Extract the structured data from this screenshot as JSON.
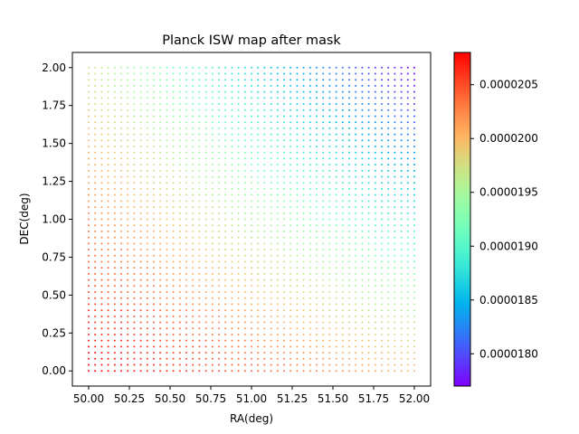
{
  "chart_data": {
    "type": "scatter",
    "title": "Planck ISW map after mask",
    "xlabel": "RA(deg)",
    "ylabel": "DEC(deg)",
    "xlim": [
      49.9,
      52.1
    ],
    "ylim": [
      -0.1,
      2.1
    ],
    "grid": false,
    "x_ticks": [
      50.0,
      50.25,
      50.5,
      50.75,
      51.0,
      51.25,
      51.5,
      51.75,
      52.0
    ],
    "x_tick_labels": [
      "50.00",
      "50.25",
      "50.50",
      "50.75",
      "51.00",
      "51.25",
      "51.50",
      "51.75",
      "52.00"
    ],
    "y_ticks": [
      0.0,
      0.25,
      0.5,
      0.75,
      1.0,
      1.25,
      1.5,
      1.75,
      2.0
    ],
    "y_tick_labels": [
      "0.00",
      "0.25",
      "0.50",
      "0.75",
      "1.00",
      "1.25",
      "1.50",
      "1.75",
      "2.00"
    ],
    "points": {
      "x_range": [
        50.0,
        52.0
      ],
      "y_range": [
        0.0,
        2.0
      ],
      "grid_step": 0.04,
      "value_field": {
        "bottom_left": 2.08e-05,
        "bottom_right": 2e-05,
        "top_left": 1.97e-05,
        "top_right": 1.77e-05
      }
    },
    "colorbar": {
      "colormap": "rainbow",
      "vmin": 1.77e-05,
      "vmax": 2.08e-05,
      "ticks": [
        1.8e-05,
        1.85e-05,
        1.9e-05,
        1.95e-05,
        2e-05,
        2.05e-05
      ],
      "tick_labels": [
        "0.0000180",
        "0.0000185",
        "0.0000190",
        "0.0000195",
        "0.0000200",
        "0.0000205"
      ]
    }
  }
}
